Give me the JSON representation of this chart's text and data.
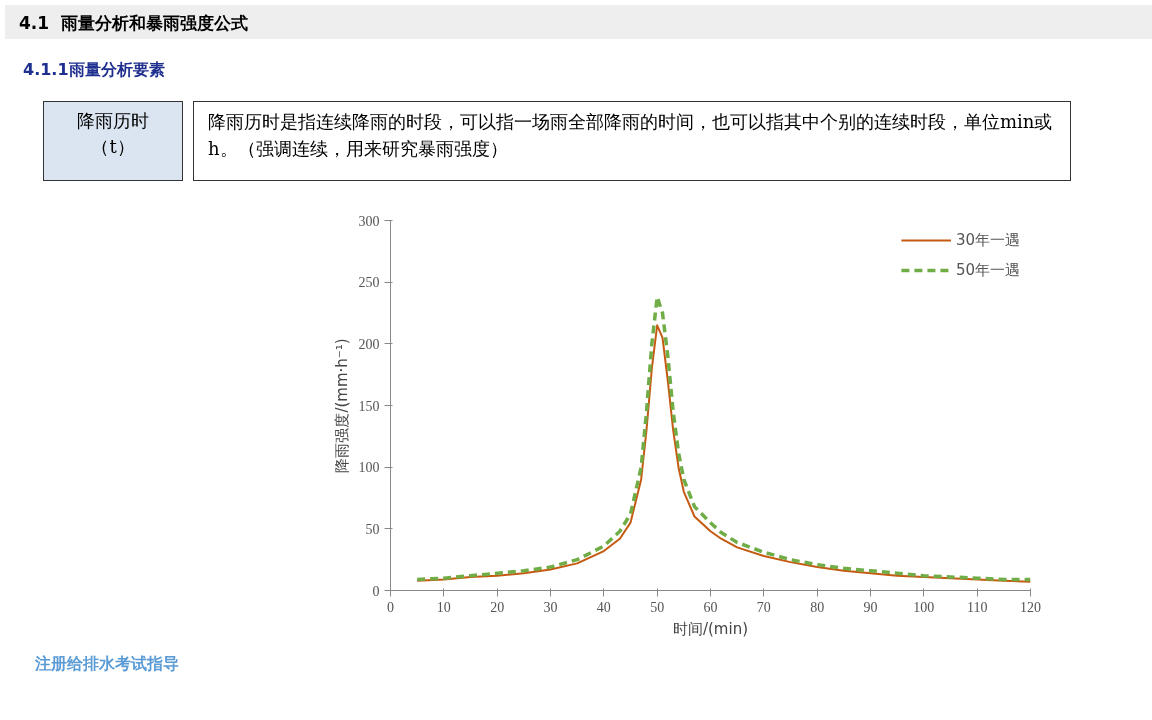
{
  "chart_data": {
    "type": "line",
    "title": "4.1  雨量分析和暴雨强度公式",
    "subtitle": "4.1.1雨量分析要素",
    "annotations": [
      "降雨历时",
      "（t）",
      "降雨历时是指连续降雨的时段，可以指一场雨全部降雨的时间，也可以指其中个别的连续时段，单位min或h。（强调连续，用来研究暴雨强度）",
      "注册给排水考试指导"
    ],
    "xlabel": "时间/(min)",
    "ylabel": "降雨强度/(mm·h⁻¹)",
    "x": [
      5,
      10,
      15,
      20,
      25,
      30,
      35,
      40,
      43,
      45,
      47,
      48,
      49,
      50,
      51,
      52,
      53,
      54,
      55,
      57,
      60,
      62,
      65,
      70,
      75,
      80,
      85,
      90,
      95,
      100,
      105,
      110,
      115,
      120
    ],
    "series": [
      {
        "name": "30年一遇",
        "color": "#c55a11",
        "line_style": "solid",
        "values": [
          8,
          9,
          11,
          12,
          14,
          17,
          22,
          32,
          42,
          55,
          90,
          130,
          180,
          215,
          205,
          170,
          130,
          100,
          80,
          60,
          48,
          42,
          35,
          28,
          23,
          19,
          16,
          14,
          12,
          11,
          10,
          9,
          8,
          7
        ]
      },
      {
        "name": "50年一遇",
        "color": "#70ad47",
        "line_style": "dashed",
        "values": [
          9,
          10,
          12,
          14,
          16,
          19,
          25,
          36,
          48,
          62,
          100,
          145,
          200,
          238,
          225,
          190,
          145,
          112,
          90,
          68,
          55,
          47,
          39,
          31,
          25,
          21,
          18,
          16,
          14,
          12,
          11,
          10,
          9,
          9
        ]
      }
    ],
    "xlim": [
      0,
      120
    ],
    "xticks": [
      0,
      10,
      20,
      30,
      40,
      50,
      60,
      70,
      80,
      90,
      100,
      110,
      120
    ],
    "ylim": [
      0,
      300
    ],
    "yticks": [
      0,
      50,
      100,
      150,
      200,
      250,
      300
    ],
    "grid": false,
    "legend": "top right",
    "marker": "none"
  }
}
